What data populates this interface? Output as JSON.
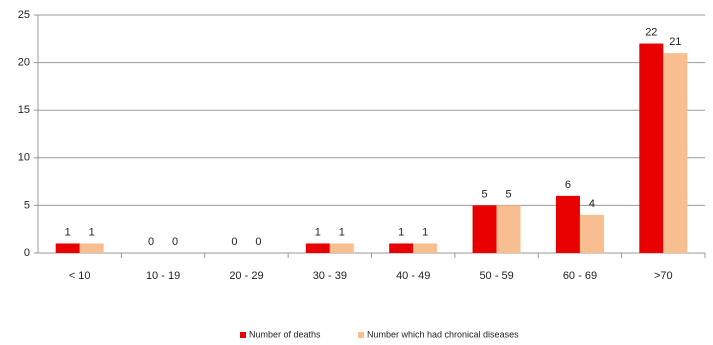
{
  "chart_data": {
    "type": "bar",
    "categories": [
      "< 10",
      "10 - 19",
      "20 - 29",
      "30 - 39",
      "40 - 49",
      "50 - 59",
      "60 - 69",
      ">70"
    ],
    "series": [
      {
        "name": "Number of deaths",
        "color": "#e80000",
        "values": [
          1,
          0,
          0,
          1,
          1,
          5,
          6,
          22
        ]
      },
      {
        "name": "Number which had chronical diseases",
        "color": "#f9be8f",
        "values": [
          1,
          0,
          0,
          1,
          1,
          5,
          4,
          21
        ]
      }
    ],
    "ylim": [
      0,
      25
    ],
    "yticks": [
      0,
      5,
      10,
      15,
      20,
      25
    ],
    "grid": true,
    "legend": "bottom"
  }
}
